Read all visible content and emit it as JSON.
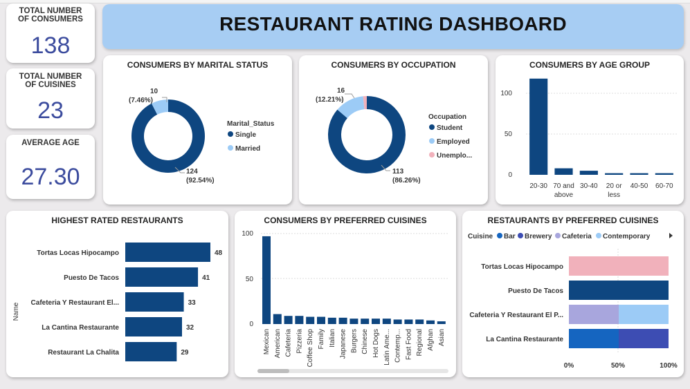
{
  "dashboard": {
    "title": "RESTAURANT RATING DASHBOARD"
  },
  "kpis": [
    {
      "label_line1": "TOTAL NUMBER",
      "label_line2": "OF CONSUMERS",
      "value": "138"
    },
    {
      "label_line1": "TOTAL NUMBER",
      "label_line2": "OF CUISINES",
      "value": "23"
    },
    {
      "label_line1": "AVERAGE AGE",
      "label_line2": "",
      "value": "27.30"
    }
  ],
  "colors": {
    "navy": "#0e4680",
    "light_blue": "#9ccbf6",
    "pink": "#f1b1bb",
    "lavender": "#a8a6dd",
    "royal": "#1565c0",
    "indigo": "#3d4db3",
    "kpi_value": "#3c4c9e",
    "banner": "#a7cdf3"
  },
  "chart_data": [
    {
      "id": "marital",
      "type": "pie",
      "title": "CONSUMERS BY MARITAL STATUS",
      "legend_title": "Marital_Status",
      "slices": [
        {
          "name": "Single",
          "value": 124,
          "pct": "(92.54%)"
        },
        {
          "name": "Married",
          "value": 10,
          "pct": "(7.46%)"
        }
      ]
    },
    {
      "id": "occupation",
      "type": "pie",
      "title": "CONSUMERS BY OCCUPATION",
      "legend_title": "Occupation",
      "slices": [
        {
          "name": "Student",
          "value": 113,
          "pct": "(86.26%)"
        },
        {
          "name": "Employed",
          "value": 16,
          "pct": "(12.21%)"
        },
        {
          "name": "Unemplo...",
          "value": 2,
          "pct": ""
        }
      ]
    },
    {
      "id": "age_group",
      "type": "bar",
      "title": "CONSUMERS BY AGE GROUP",
      "categories": [
        [
          "20-30"
        ],
        [
          "70 and",
          "above"
        ],
        [
          "30-40"
        ],
        [
          "20 or",
          "less"
        ],
        [
          "40-50"
        ],
        [
          "60-70"
        ]
      ],
      "values": [
        118,
        8,
        5,
        2,
        2,
        2
      ],
      "yticks": [
        "0",
        "50",
        "100"
      ],
      "ylim": [
        0,
        130
      ]
    },
    {
      "id": "highest_rated",
      "type": "bar",
      "title": "HIGHEST RATED RESTAURANTS",
      "ylabel": "Name",
      "categories": [
        "Tortas Locas Hipocampo",
        "Puesto De Tacos",
        "Cafeteria Y Restaurant El...",
        "La Cantina Restaurante",
        "Restaurant La Chalita"
      ],
      "values": [
        48,
        41,
        33,
        32,
        29
      ],
      "xlim": [
        0,
        50
      ]
    },
    {
      "id": "preferred_cuisines",
      "type": "bar",
      "title": "CONSUMERS BY PREFERRED CUISINES",
      "categories": [
        "Mexican",
        "American",
        "Cafeteria",
        "Pizzeria",
        "Coffee Shop",
        "Family",
        "Italian",
        "Japanese",
        "Burgers",
        "Chinese",
        "Hot Dogs",
        "Latin Ame...",
        "Contemp...",
        "Fast Food",
        "Regional",
        "Afghan",
        "Asian"
      ],
      "values": [
        97,
        11,
        9,
        9,
        8,
        8,
        7,
        7,
        6,
        6,
        6,
        6,
        5,
        5,
        5,
        4,
        3
      ],
      "yticks": [
        "0",
        "50",
        "100"
      ],
      "ylim": [
        0,
        105
      ]
    },
    {
      "id": "restaurants_cuisine",
      "type": "bar",
      "title": "RESTAURANTS BY PREFERRED CUISINES",
      "legend_title": "Cuisine",
      "legend": [
        {
          "name": "Bar",
          "color": "#1565c0"
        },
        {
          "name": "Brewery",
          "color": "#3d4db3"
        },
        {
          "name": "Cafeteria",
          "color": "#a8a6dd"
        },
        {
          "name": "Contemporary",
          "color": "#9ccbf6"
        }
      ],
      "categories": [
        "Tortas Locas Hipocampo",
        "Puesto De Tacos",
        "Cafeteria Y Restaurant El P...",
        "La Cantina Restaurante"
      ],
      "stacks": [
        [
          {
            "color": "#f1b1bb",
            "value": 100
          }
        ],
        [
          {
            "color": "#0e4680",
            "value": 100
          }
        ],
        [
          {
            "color": "#a8a6dd",
            "value": 50
          },
          {
            "color": "#9ccbf6",
            "value": 50
          }
        ],
        [
          {
            "color": "#1565c0",
            "value": 50
          },
          {
            "color": "#3d4db3",
            "value": 50
          }
        ]
      ],
      "xticks": [
        "0%",
        "50%",
        "100%"
      ]
    }
  ]
}
